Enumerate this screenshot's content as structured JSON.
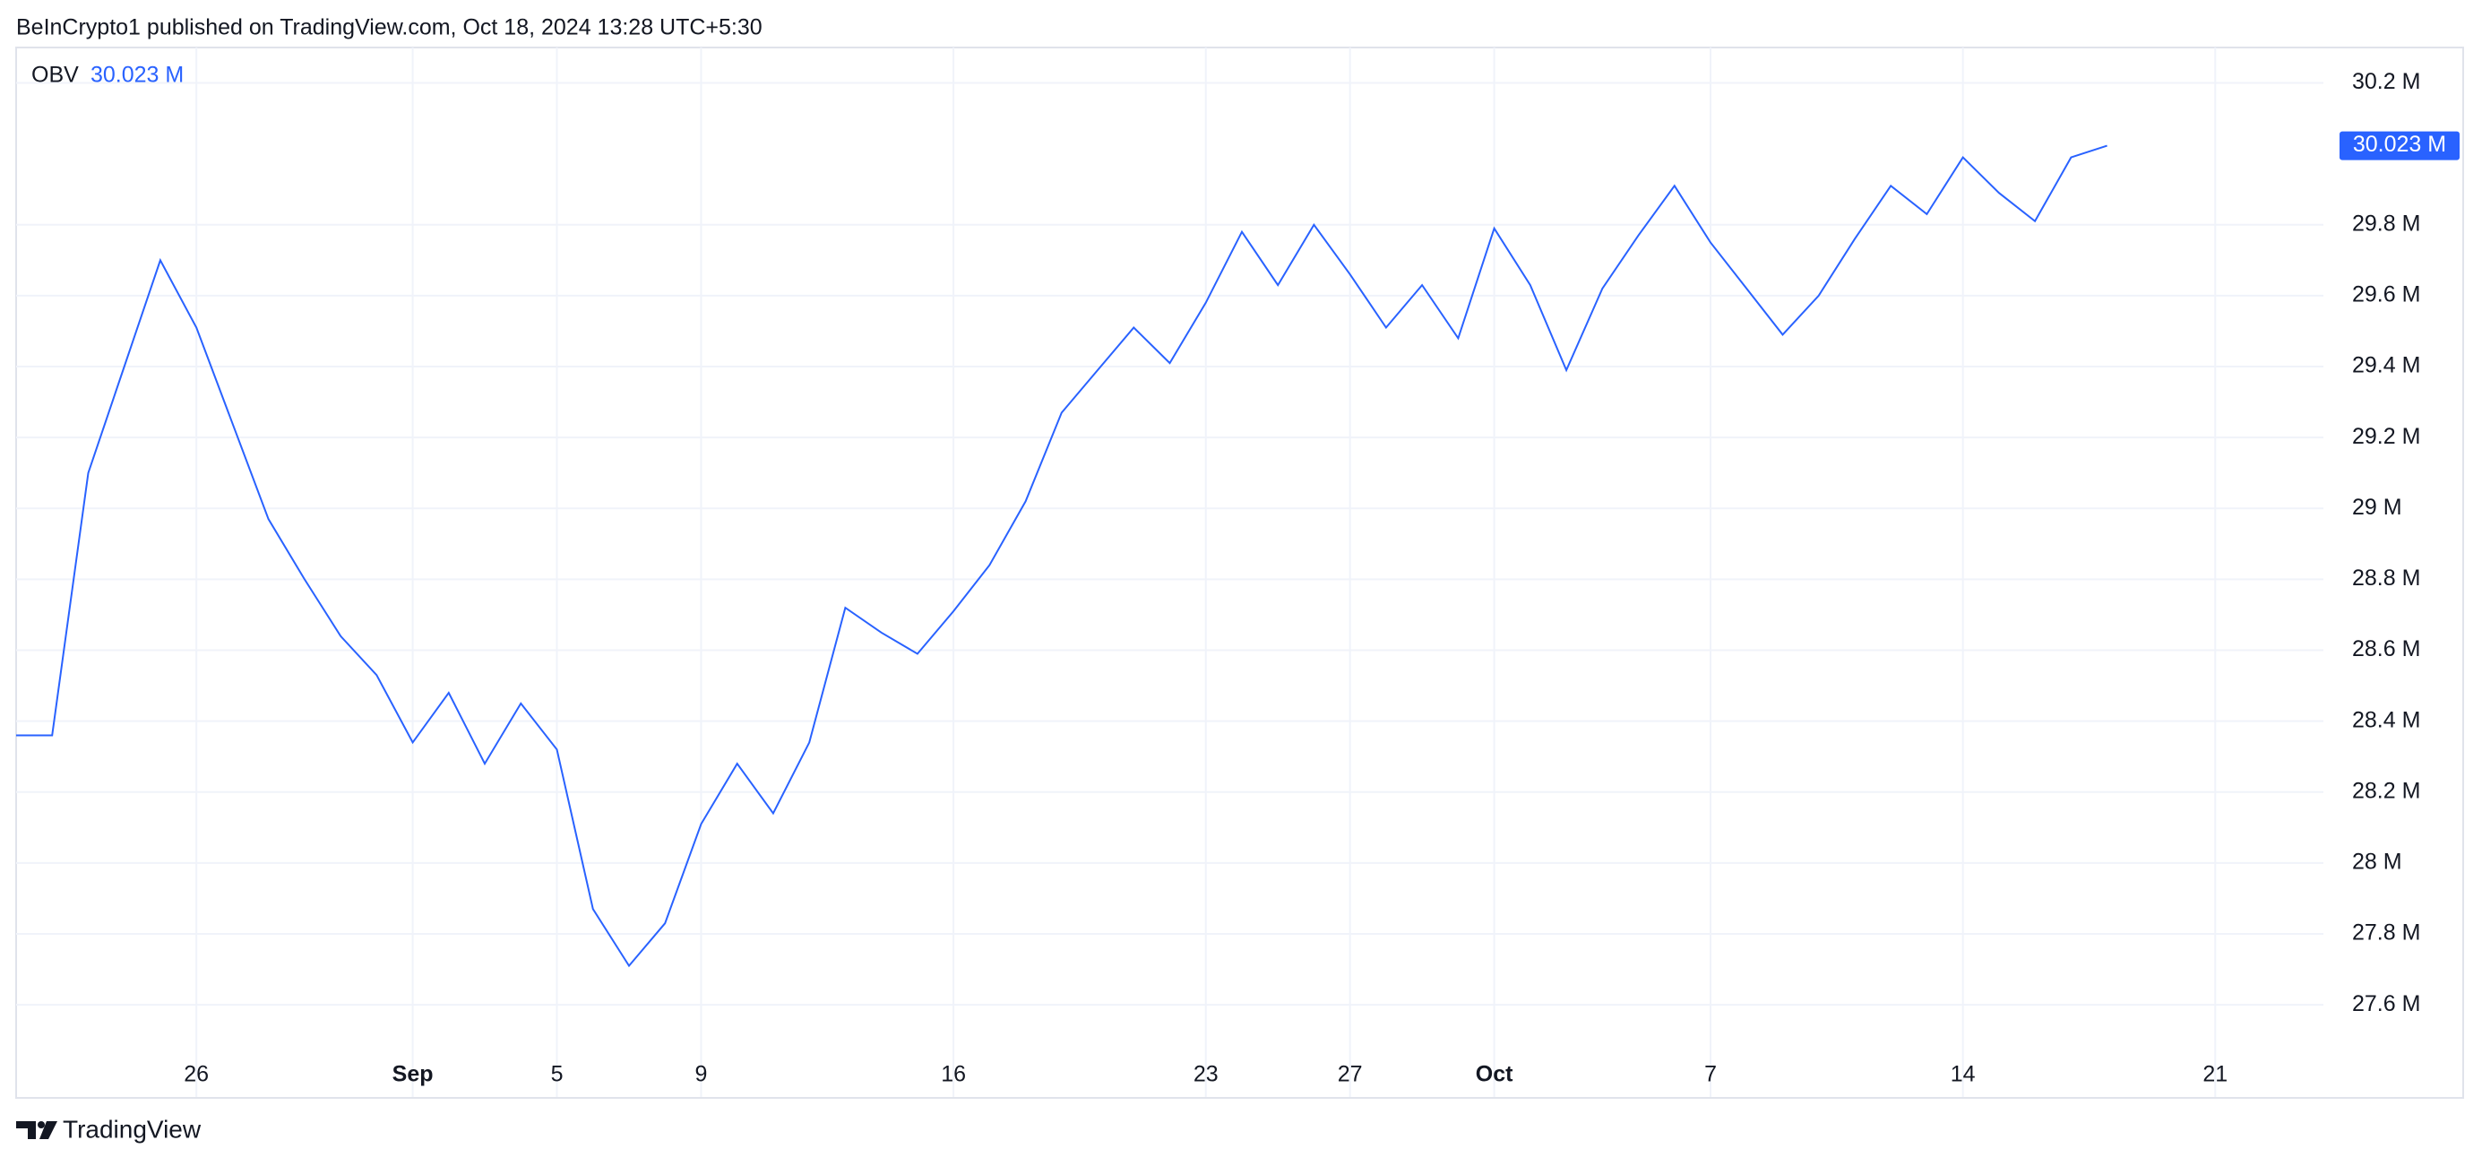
{
  "header": "BeInCrypto1 published on TradingView.com, Oct 18, 2024 13:28 UTC+5:30",
  "footer": "TradingView",
  "chart_data": {
    "type": "line",
    "indicator": "OBV",
    "x": [
      "Aug 21",
      "Aug 22",
      "Aug 23",
      "Aug 24",
      "Aug 25",
      "Aug 26",
      "Aug 27",
      "Aug 28",
      "Aug 29",
      "Aug 30",
      "Aug 31",
      "Sep 1",
      "Sep 2",
      "Sep 3",
      "Sep 4",
      "Sep 5",
      "Sep 6",
      "Sep 7",
      "Sep 8",
      "Sep 9",
      "Sep 10",
      "Sep 11",
      "Sep 12",
      "Sep 13",
      "Sep 14",
      "Sep 15",
      "Sep 16",
      "Sep 17",
      "Sep 18",
      "Sep 19",
      "Sep 20",
      "Sep 21",
      "Sep 22",
      "Sep 23",
      "Sep 24",
      "Sep 25",
      "Sep 26",
      "Sep 27",
      "Sep 28",
      "Sep 29",
      "Sep 30",
      "Oct 1",
      "Oct 2",
      "Oct 3",
      "Oct 4",
      "Oct 5",
      "Oct 6",
      "Oct 7",
      "Oct 8",
      "Oct 9",
      "Oct 10",
      "Oct 11",
      "Oct 12",
      "Oct 13",
      "Oct 14",
      "Oct 15",
      "Oct 16",
      "Oct 17",
      "Oct 18"
    ],
    "series": [
      {
        "name": "OBV",
        "color": "#2962ff",
        "values": [
          28.36,
          28.36,
          29.1,
          29.4,
          29.7,
          29.51,
          29.24,
          28.97,
          28.8,
          28.64,
          28.53,
          28.34,
          28.48,
          28.28,
          28.45,
          28.32,
          27.87,
          27.71,
          27.83,
          28.11,
          28.28,
          28.14,
          28.34,
          28.72,
          28.65,
          28.59,
          28.71,
          28.84,
          29.02,
          29.27,
          29.39,
          29.51,
          29.41,
          29.58,
          29.78,
          29.63,
          29.8,
          29.66,
          29.51,
          29.63,
          29.48,
          29.79,
          29.63,
          29.39,
          29.62,
          29.77,
          29.91,
          29.75,
          29.62,
          29.49,
          29.6,
          29.76,
          29.91,
          29.83,
          29.99,
          29.89,
          29.81,
          29.99,
          30.023
        ],
        "value_labels": [
          null,
          null,
          null,
          null,
          null,
          null,
          null,
          null,
          null,
          null,
          null,
          null,
          null,
          null,
          null,
          null,
          null,
          null,
          null,
          null,
          null,
          null,
          null,
          null,
          null,
          null,
          null,
          null,
          null,
          null,
          null,
          null,
          null,
          null,
          null,
          null,
          null,
          null,
          null,
          null,
          null,
          null,
          null,
          null,
          null,
          null,
          null,
          null,
          null,
          null,
          null,
          null,
          null,
          null,
          null,
          null,
          null,
          null,
          "30.023 M"
        ]
      }
    ],
    "xlim": [
      "Aug 21",
      "Oct 24"
    ],
    "xticks": [
      {
        "value": "Aug 26",
        "label": "26"
      },
      {
        "value": "Sep 1",
        "label": "Sep"
      },
      {
        "value": "Sep 5",
        "label": "5"
      },
      {
        "value": "Sep 9",
        "label": "9"
      },
      {
        "value": "Sep 16",
        "label": "16"
      },
      {
        "value": "Sep 23",
        "label": "23"
      },
      {
        "value": "Sep 27",
        "label": "27"
      },
      {
        "value": "Oct 1",
        "label": "Oct"
      },
      {
        "value": "Oct 7",
        "label": "7"
      },
      {
        "value": "Oct 14",
        "label": "14"
      },
      {
        "value": "Oct 21",
        "label": "21"
      }
    ],
    "ylim": [
      27.34,
      30.3
    ],
    "yticks": [
      {
        "value": 27.6,
        "label": "27.6 M"
      },
      {
        "value": 27.8,
        "label": "27.8 M"
      },
      {
        "value": 28,
        "label": "28 M"
      },
      {
        "value": 28.2,
        "label": "28.2 M"
      },
      {
        "value": 28.4,
        "label": "28.4 M"
      },
      {
        "value": 28.6,
        "label": "28.6 M"
      },
      {
        "value": 28.8,
        "label": "28.8 M"
      },
      {
        "value": 29,
        "label": "29 M"
      },
      {
        "value": 29.2,
        "label": "29.2 M"
      },
      {
        "value": 29.4,
        "label": "29.4 M"
      },
      {
        "value": 29.6,
        "label": "29.6 M"
      },
      {
        "value": 29.8,
        "label": "29.8 M"
      },
      {
        "value": 30.2,
        "label": "30.2 M"
      }
    ],
    "grid": true,
    "axis_side": "right"
  }
}
